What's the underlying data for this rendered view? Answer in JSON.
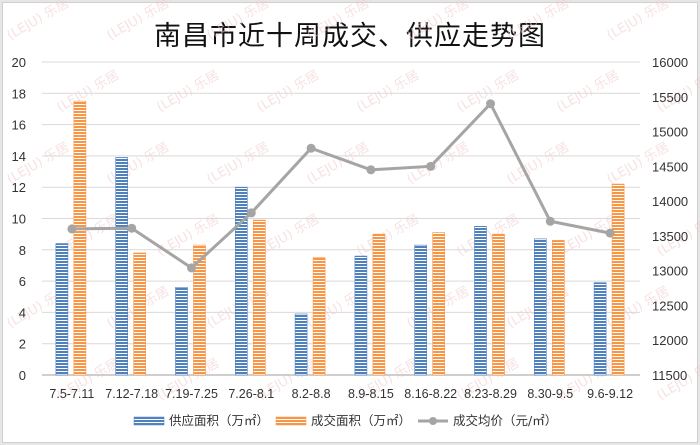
{
  "title": "南昌市近十周成交、供应走势图",
  "colors": {
    "supply": "#4f81bd",
    "deal": "#f79646",
    "price": "#a5a5a5",
    "grid": "#d9d9d9"
  },
  "legend": {
    "supply": "供应面积（万㎡）",
    "deal": "成交面积（万㎡）",
    "price": "成交均价（元/㎡）"
  },
  "chart_data": {
    "type": "bar",
    "title": "南昌市近十周成交、供应走势图",
    "categories": [
      "7.5-7.11",
      "7.12-7.18",
      "7.19-7.25",
      "7.26-8.1",
      "8.2-8.8",
      "8.9-8.15",
      "8.16-8.22",
      "8.23-8.29",
      "8.30-9.5",
      "9.6-9.12"
    ],
    "series": [
      {
        "name": "供应面积（万㎡）",
        "type": "bar",
        "axis": "left",
        "values": [
          8.4,
          13.9,
          5.6,
          12.0,
          3.9,
          7.6,
          8.3,
          9.5,
          8.7,
          5.9
        ]
      },
      {
        "name": "成交面积（万㎡）",
        "type": "bar",
        "axis": "left",
        "values": [
          17.5,
          7.8,
          8.3,
          9.9,
          7.5,
          9.0,
          9.1,
          9.0,
          8.6,
          12.2
        ]
      },
      {
        "name": "成交均价（元/㎡）",
        "type": "line",
        "axis": "right",
        "values": [
          13600,
          13610,
          13040,
          13830,
          14760,
          14450,
          14500,
          15400,
          13710,
          13540
        ]
      }
    ],
    "xlabel": "",
    "ylabel": "",
    "ylim": [
      0,
      20
    ],
    "yticks": [
      0,
      2,
      4,
      6,
      8,
      10,
      12,
      14,
      16,
      18,
      20
    ],
    "y2lim": [
      11500,
      16000
    ],
    "y2ticks": [
      11500,
      12000,
      12500,
      13000,
      13500,
      14000,
      14500,
      15000,
      15500,
      16000
    ],
    "grid": true,
    "legend_position": "bottom"
  },
  "watermark": "乐居"
}
